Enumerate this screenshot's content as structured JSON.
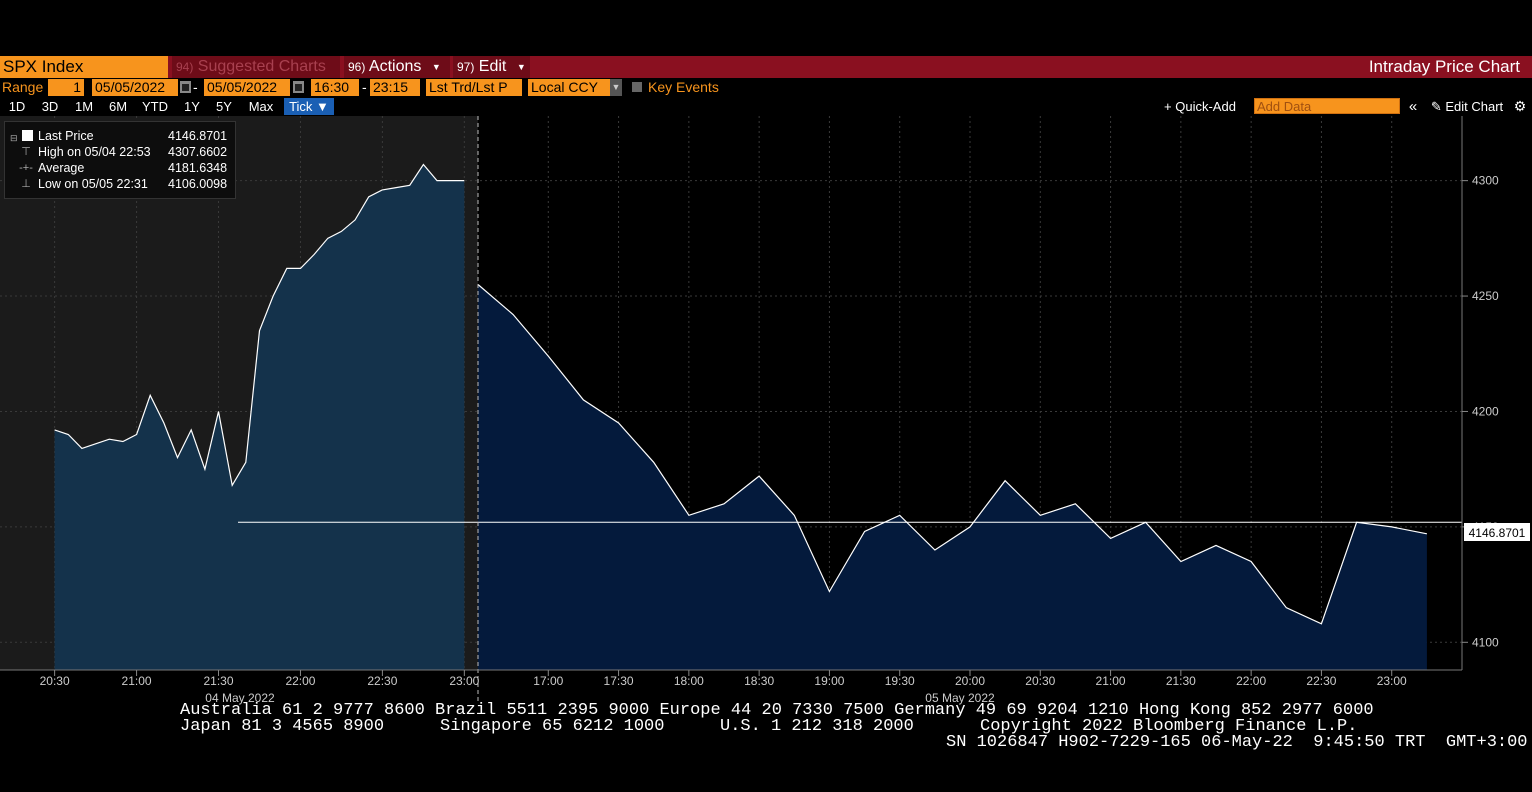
{
  "titlebar": {
    "ticker": "SPX Index",
    "suggested_num": "94)",
    "suggested_label": "Suggested Charts",
    "actions_num": "96)",
    "actions_label": "Actions",
    "edit_num": "97)",
    "edit_label": "Edit",
    "chart_title": "Intraday Price Chart"
  },
  "range": {
    "label": "Range",
    "count": "1",
    "start_date": "05/05/2022",
    "end_date": "05/05/2022",
    "separator": "-",
    "start_time": "16:30",
    "end_time": "23:15",
    "price_type": "Lst Trd/Lst P",
    "currency": "Local CCY",
    "key_events": "Key Events"
  },
  "periods": [
    "1D",
    "3D",
    "1M",
    "6M",
    "YTD",
    "1Y",
    "5Y",
    "Max",
    "Tick ▼"
  ],
  "toolbar": {
    "quick_add": "+ Quick-Add",
    "add_data_placeholder": "Add Data",
    "collapse": "«",
    "edit_chart": "✎ Edit Chart",
    "settings_icon": "gear-icon"
  },
  "legend": {
    "rows": [
      {
        "label": "Last Price",
        "value": "4146.8701"
      },
      {
        "label": "High on 05/04 22:53",
        "value": "4307.6602"
      },
      {
        "label": "Average",
        "value": "4181.6348"
      },
      {
        "label": "Low on 05/05 22:31",
        "value": "4106.0098"
      }
    ]
  },
  "chart_data": {
    "type": "area",
    "yticks": [
      4100,
      4150,
      4200,
      4250,
      4300
    ],
    "ytick_labels": [
      "4100",
      "4150",
      "4200",
      "4250",
      "4300"
    ],
    "ylim": [
      4088,
      4328
    ],
    "last_price_label": "4146.8701",
    "reference_line": 4152,
    "day1": {
      "date_label": "04 May 2022",
      "tick_labels": [
        "20:30",
        "21:00",
        "21:30",
        "22:00",
        "22:30",
        "23:00"
      ],
      "x": [
        "20:30",
        "20:35",
        "20:40",
        "20:45",
        "20:50",
        "20:55",
        "21:00",
        "21:05",
        "21:10",
        "21:15",
        "21:20",
        "21:25",
        "21:30",
        "21:35",
        "21:40",
        "21:45",
        "21:50",
        "21:55",
        "22:00",
        "22:05",
        "22:10",
        "22:15",
        "22:20",
        "22:25",
        "22:30",
        "22:35",
        "22:40",
        "22:45",
        "22:50",
        "22:55",
        "23:00"
      ],
      "values": [
        4192,
        4190,
        4184,
        4186,
        4188,
        4187,
        4190,
        4207,
        4195,
        4180,
        4192,
        4175,
        4200,
        4168,
        4178,
        4235,
        4250,
        4262,
        4262,
        4268,
        4275,
        4278,
        4283,
        4293,
        4296,
        4297,
        4298,
        4307,
        4300,
        4300,
        4300
      ]
    },
    "day2": {
      "date_label": "05 May 2022",
      "tick_labels": [
        "17:00",
        "17:30",
        "18:00",
        "18:30",
        "19:00",
        "19:30",
        "20:00",
        "20:30",
        "21:00",
        "21:30",
        "22:00",
        "22:30",
        "23:00"
      ],
      "x": [
        "16:30",
        "16:45",
        "17:00",
        "17:15",
        "17:30",
        "17:45",
        "18:00",
        "18:15",
        "18:30",
        "18:45",
        "19:00",
        "19:15",
        "19:30",
        "19:45",
        "20:00",
        "20:15",
        "20:30",
        "20:45",
        "21:00",
        "21:15",
        "21:30",
        "21:45",
        "22:00",
        "22:15",
        "22:30",
        "22:45",
        "23:00",
        "23:15"
      ],
      "values": [
        4255,
        4242,
        4224,
        4205,
        4195,
        4178,
        4155,
        4160,
        4172,
        4155,
        4122,
        4148,
        4155,
        4140,
        4150,
        4170,
        4155,
        4160,
        4145,
        4152,
        4135,
        4142,
        4135,
        4115,
        4108,
        4152,
        4150,
        4147
      ]
    }
  },
  "footer": {
    "line1": "Australia 61 2 9777 8600 Brazil 5511 2395 9000 Europe 44 20 7330 7500 Germany 49 69 9204 1210 Hong Kong 852 2977 6000",
    "line2a": "Japan 81 3 4565 8900",
    "line2b": "Singapore 65 6212 1000",
    "line2c": "U.S. 1 212 318 2000",
    "line2d": "Copyright 2022 Bloomberg Finance L.P.",
    "line3": "SN 1026847 H902-7229-165 06-May-22  9:45:50 TRT  GMT+3:00"
  }
}
